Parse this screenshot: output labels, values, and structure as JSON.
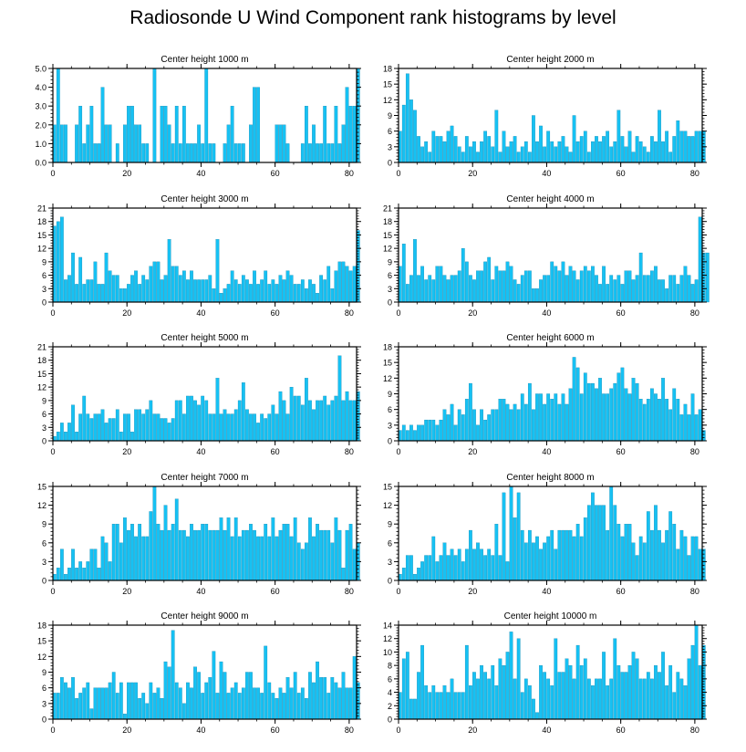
{
  "title": "Radiosonde U Wind Component rank histograms by level",
  "colors": {
    "bar": "#16c1f3",
    "bar_edge": "#0a7fa8",
    "axis": "#000000"
  },
  "chart_data": [
    {
      "type": "bar",
      "title": "Center height 1000 m",
      "xlim": [
        0,
        82
      ],
      "ylim": [
        0,
        5
      ],
      "yticks": [
        0,
        1,
        2,
        3,
        4,
        5
      ],
      "ytick_labels": [
        "0.0",
        "1.0",
        "2.0",
        "3.0",
        "4.0",
        "5.0"
      ],
      "xticks": [
        0,
        20,
        40,
        60,
        80
      ],
      "values": [
        2,
        5,
        2,
        2,
        0,
        0,
        2,
        3,
        1,
        2,
        3,
        1,
        1,
        4,
        2,
        2,
        0,
        1,
        0,
        2,
        3,
        3,
        2,
        2,
        1,
        1,
        0,
        5,
        0,
        3,
        3,
        2,
        1,
        3,
        1,
        3,
        1,
        1,
        1,
        2,
        1,
        5,
        1,
        1,
        0,
        0,
        1,
        2,
        3,
        1,
        1,
        1,
        0,
        2,
        4,
        4,
        0,
        0,
        0,
        0,
        2,
        2,
        2,
        1,
        0,
        0,
        0,
        1,
        3,
        1,
        2,
        1,
        1,
        3,
        1,
        1,
        3,
        1,
        2,
        4,
        3,
        3,
        5
      ]
    },
    {
      "type": "bar",
      "title": "Center height 2000 m",
      "xlim": [
        0,
        82
      ],
      "ylim": [
        0,
        18
      ],
      "yticks": [
        0,
        3,
        6,
        9,
        12,
        15,
        18
      ],
      "ytick_labels": [
        "0",
        "3",
        "6",
        "9",
        "12",
        "15",
        "18"
      ],
      "xticks": [
        0,
        20,
        40,
        60,
        80
      ],
      "values": [
        6,
        11,
        17,
        12,
        10,
        5,
        3,
        4,
        2,
        6,
        5,
        5,
        4,
        6,
        7,
        5,
        3,
        2,
        5,
        3,
        4,
        2,
        4,
        6,
        5,
        3,
        10,
        2,
        6,
        3,
        4,
        5,
        2,
        3,
        4,
        2,
        9,
        4,
        7,
        3,
        6,
        4,
        3,
        4,
        5,
        3,
        2,
        9,
        4,
        5,
        6,
        2,
        4,
        5,
        4,
        5,
        6,
        3,
        4,
        10,
        5,
        3,
        6,
        2,
        5,
        4,
        3,
        2,
        5,
        4,
        10,
        4,
        6,
        2,
        5,
        8,
        6,
        6,
        5,
        5,
        6,
        6,
        6
      ]
    },
    {
      "type": "bar",
      "title": "Center height 3000 m",
      "xlim": [
        0,
        82
      ],
      "ylim": [
        0,
        21
      ],
      "yticks": [
        0,
        3,
        6,
        9,
        12,
        15,
        18,
        21
      ],
      "ytick_labels": [
        "0",
        "3",
        "6",
        "9",
        "12",
        "15",
        "18",
        "21"
      ],
      "xticks": [
        0,
        20,
        40,
        60,
        80
      ],
      "values": [
        17,
        18,
        19,
        5,
        6,
        11,
        4,
        10,
        4,
        5,
        5,
        9,
        4,
        4,
        11,
        7,
        6,
        6,
        3,
        3,
        4,
        6,
        7,
        4,
        6,
        5,
        8,
        9,
        9,
        5,
        6,
        14,
        8,
        8,
        6,
        7,
        5,
        7,
        5,
        5,
        5,
        5,
        6,
        3,
        14,
        2,
        3,
        4,
        7,
        5,
        4,
        6,
        5,
        4,
        7,
        4,
        5,
        7,
        4,
        5,
        4,
        6,
        5,
        7,
        6,
        4,
        4,
        5,
        3,
        5,
        4,
        2,
        6,
        5,
        8,
        3,
        7,
        9,
        9,
        8,
        7,
        8,
        16
      ]
    },
    {
      "type": "bar",
      "title": "Center height 4000 m",
      "xlim": [
        0,
        82
      ],
      "ylim": [
        0,
        21
      ],
      "yticks": [
        0,
        3,
        6,
        9,
        12,
        15,
        18,
        21
      ],
      "ytick_labels": [
        "0",
        "3",
        "6",
        "9",
        "12",
        "15",
        "18",
        "21"
      ],
      "xticks": [
        0,
        20,
        40,
        60,
        80
      ],
      "values": [
        8,
        13,
        4,
        6,
        14,
        6,
        8,
        5,
        6,
        5,
        8,
        8,
        6,
        5,
        6,
        6,
        7,
        12,
        9,
        6,
        5,
        7,
        7,
        9,
        10,
        5,
        8,
        7,
        7,
        9,
        8,
        5,
        4,
        6,
        7,
        7,
        3,
        3,
        5,
        6,
        6,
        9,
        8,
        7,
        9,
        6,
        8,
        7,
        5,
        7,
        8,
        7,
        8,
        6,
        4,
        8,
        4,
        6,
        5,
        6,
        4,
        7,
        7,
        5,
        6,
        11,
        6,
        6,
        7,
        8,
        5,
        5,
        3,
        6,
        6,
        4,
        6,
        8,
        6,
        4,
        5,
        19,
        11,
        11
      ]
    },
    {
      "type": "bar",
      "title": "Center height 5000 m",
      "xlim": [
        0,
        82
      ],
      "ylim": [
        0,
        21
      ],
      "yticks": [
        0,
        3,
        6,
        9,
        12,
        15,
        18,
        21
      ],
      "ytick_labels": [
        "0",
        "3",
        "6",
        "9",
        "12",
        "15",
        "18",
        "21"
      ],
      "xticks": [
        0,
        20,
        40,
        60,
        80
      ],
      "values": [
        1,
        2,
        4,
        2,
        4,
        8,
        2,
        6,
        10,
        6,
        5,
        6,
        6,
        7,
        4,
        5,
        5,
        7,
        2,
        6,
        6,
        2,
        7,
        7,
        6,
        7,
        9,
        6,
        6,
        5,
        5,
        4,
        5,
        9,
        9,
        6,
        10,
        10,
        9,
        8,
        10,
        9,
        6,
        6,
        14,
        6,
        7,
        6,
        6,
        7,
        9,
        13,
        7,
        6,
        6,
        4,
        6,
        5,
        6,
        8,
        6,
        11,
        9,
        6,
        12,
        10,
        10,
        8,
        14,
        9,
        7,
        9,
        9,
        10,
        8,
        9,
        10,
        19,
        9,
        11,
        9,
        9,
        11
      ]
    },
    {
      "type": "bar",
      "title": "Center height 6000 m",
      "xlim": [
        0,
        82
      ],
      "ylim": [
        0,
        18
      ],
      "yticks": [
        0,
        3,
        6,
        9,
        12,
        15,
        18
      ],
      "ytick_labels": [
        "0",
        "3",
        "6",
        "9",
        "12",
        "15",
        "18"
      ],
      "xticks": [
        0,
        20,
        40,
        60,
        80
      ],
      "values": [
        2,
        3,
        2,
        3,
        2,
        3,
        3,
        4,
        4,
        4,
        3,
        4,
        6,
        5,
        7,
        3,
        6,
        5,
        8,
        11,
        6,
        3,
        6,
        4,
        5,
        6,
        6,
        8,
        8,
        7,
        6,
        7,
        6,
        9,
        7,
        11,
        6,
        9,
        9,
        7,
        9,
        8,
        9,
        7,
        9,
        7,
        10,
        16,
        14,
        9,
        13,
        11,
        11,
        10,
        12,
        9,
        9,
        10,
        11,
        13,
        14,
        10,
        9,
        12,
        11,
        8,
        7,
        8,
        10,
        9,
        8,
        12,
        8,
        6,
        10,
        8,
        5,
        7,
        5,
        9,
        5,
        6,
        2
      ]
    },
    {
      "type": "bar",
      "title": "Center height 7000 m",
      "xlim": [
        0,
        82
      ],
      "ylim": [
        0,
        15
      ],
      "yticks": [
        0,
        3,
        6,
        9,
        12,
        15
      ],
      "ytick_labels": [
        "0",
        "3",
        "6",
        "9",
        "12",
        "15"
      ],
      "xticks": [
        0,
        20,
        40,
        60,
        80
      ],
      "values": [
        1,
        2,
        5,
        1,
        2,
        5,
        2,
        3,
        2,
        3,
        5,
        5,
        2,
        7,
        6,
        3,
        9,
        9,
        6,
        10,
        8,
        9,
        7,
        9,
        7,
        7,
        11,
        15,
        9,
        8,
        12,
        8,
        9,
        13,
        8,
        8,
        7,
        9,
        8,
        8,
        9,
        9,
        8,
        8,
        8,
        10,
        8,
        10,
        7,
        10,
        7,
        8,
        8,
        9,
        8,
        7,
        7,
        9,
        7,
        10,
        7,
        8,
        9,
        9,
        7,
        10,
        6,
        5,
        6,
        10,
        7,
        9,
        8,
        8,
        8,
        6,
        10,
        8,
        2,
        8,
        9,
        5,
        6
      ]
    },
    {
      "type": "bar",
      "title": "Center height 8000 m",
      "xlim": [
        0,
        82
      ],
      "ylim": [
        0,
        15
      ],
      "yticks": [
        0,
        3,
        6,
        9,
        12,
        15
      ],
      "ytick_labels": [
        "0",
        "3",
        "6",
        "9",
        "12",
        "15"
      ],
      "xticks": [
        0,
        20,
        40,
        60,
        80
      ],
      "values": [
        1,
        2,
        4,
        4,
        1,
        2,
        3,
        4,
        4,
        7,
        3,
        4,
        6,
        4,
        5,
        4,
        5,
        3,
        5,
        8,
        5,
        6,
        5,
        4,
        5,
        4,
        9,
        4,
        14,
        3,
        15,
        10,
        14,
        8,
        6,
        8,
        6,
        7,
        5,
        6,
        7,
        8,
        5,
        8,
        8,
        8,
        8,
        7,
        9,
        7,
        10,
        12,
        14,
        12,
        12,
        12,
        8,
        15,
        12,
        9,
        7,
        9,
        9,
        6,
        4,
        7,
        6,
        11,
        8,
        12,
        8,
        6,
        8,
        11,
        9,
        5,
        8,
        7,
        4,
        7,
        7,
        5,
        5
      ]
    },
    {
      "type": "bar",
      "title": "Center height 9000 m",
      "xlim": [
        0,
        82
      ],
      "ylim": [
        0,
        18
      ],
      "yticks": [
        0,
        3,
        6,
        9,
        12,
        15,
        18
      ],
      "ytick_labels": [
        "0",
        "3",
        "6",
        "9",
        "12",
        "15",
        "18"
      ],
      "xticks": [
        0,
        20,
        40,
        60,
        80
      ],
      "values": [
        5,
        5,
        8,
        7,
        6,
        8,
        4,
        5,
        6,
        7,
        2,
        6,
        6,
        6,
        6,
        7,
        9,
        5,
        7,
        1,
        7,
        7,
        7,
        4,
        5,
        3,
        7,
        5,
        6,
        4,
        11,
        10,
        17,
        7,
        6,
        3,
        7,
        6,
        10,
        9,
        5,
        7,
        8,
        13,
        5,
        11,
        9,
        5,
        6,
        7,
        5,
        6,
        9,
        9,
        6,
        6,
        5,
        14,
        7,
        5,
        4,
        6,
        5,
        8,
        6,
        9,
        5,
        6,
        4,
        9,
        7,
        11,
        8,
        8,
        5,
        8,
        7,
        6,
        9,
        6,
        6,
        12,
        7
      ]
    },
    {
      "type": "bar",
      "title": "Center height 10000 m",
      "xlim": [
        0,
        82
      ],
      "ylim": [
        0,
        14
      ],
      "yticks": [
        0,
        2,
        4,
        6,
        8,
        10,
        12,
        14
      ],
      "ytick_labels": [
        "0",
        "2",
        "4",
        "6",
        "8",
        "10",
        "12",
        "14"
      ],
      "xticks": [
        0,
        20,
        40,
        60,
        80
      ],
      "values": [
        4,
        9,
        10,
        3,
        3,
        7,
        11,
        5,
        4,
        5,
        4,
        4,
        5,
        4,
        6,
        4,
        4,
        4,
        11,
        5,
        7,
        6,
        8,
        7,
        6,
        8,
        5,
        9,
        8,
        10,
        13,
        6,
        12,
        4,
        6,
        5,
        3,
        1,
        8,
        7,
        6,
        5,
        12,
        7,
        7,
        9,
        8,
        6,
        11,
        8,
        9,
        6,
        5,
        6,
        6,
        10,
        5,
        6,
        12,
        8,
        7,
        7,
        8,
        10,
        9,
        6,
        6,
        7,
        6,
        8,
        7,
        10,
        5,
        8,
        4,
        7,
        6,
        5,
        9,
        11,
        14,
        8,
        11
      ]
    }
  ]
}
